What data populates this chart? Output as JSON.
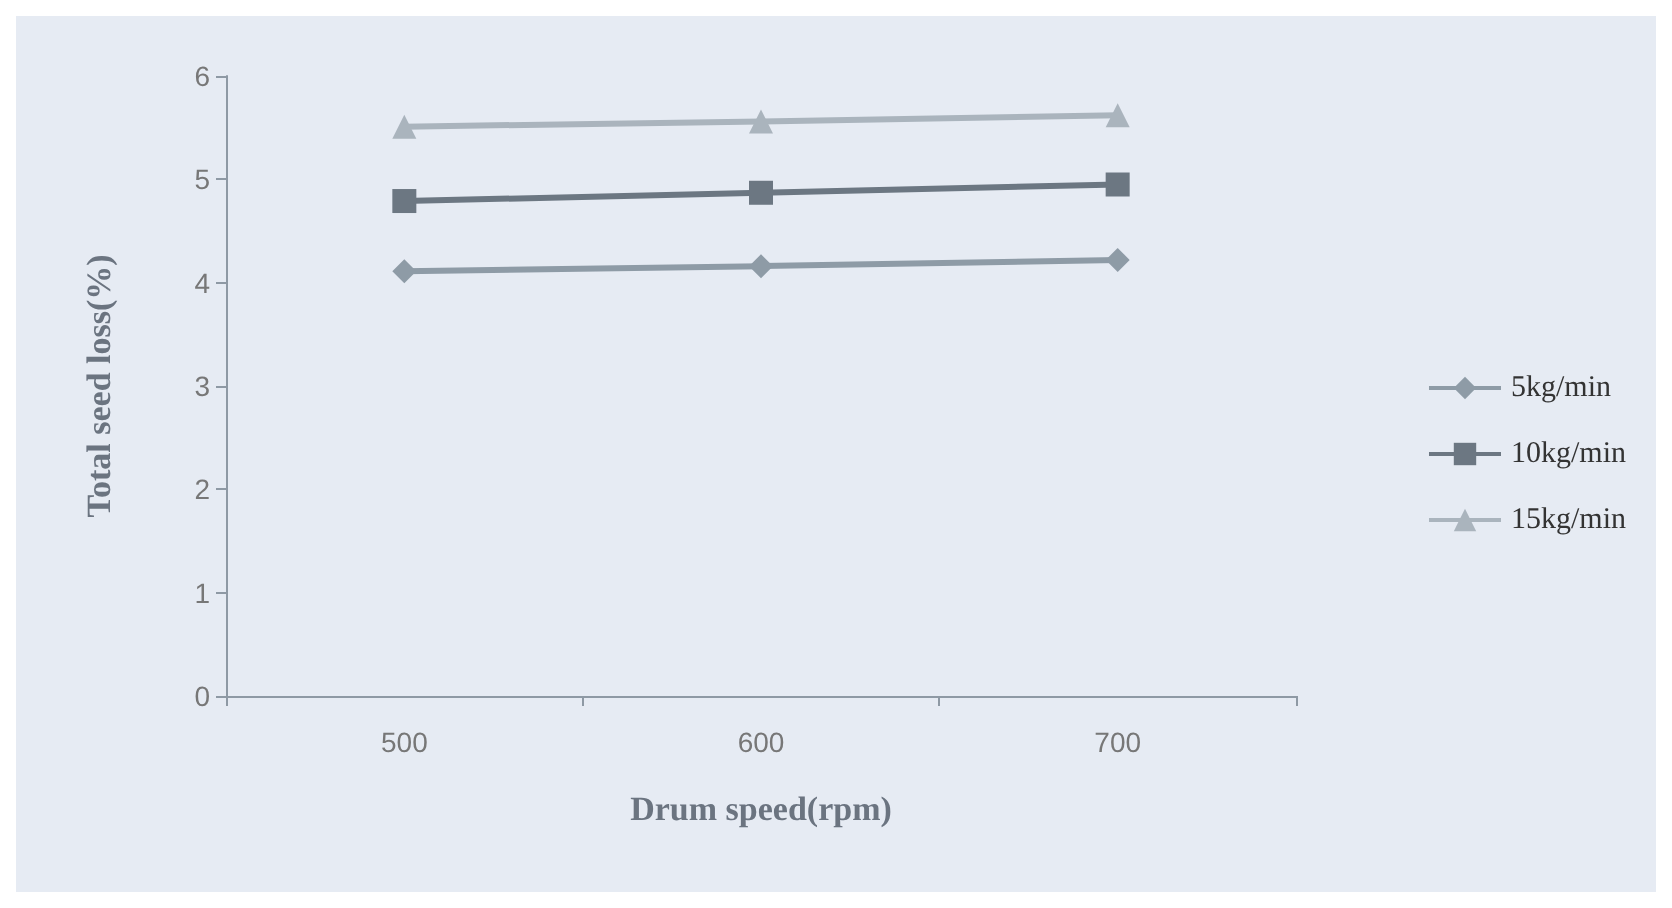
{
  "chart_data": {
    "type": "line",
    "xlabel": "Drum speed(rpm)",
    "ylabel": "Total seed loss(%)",
    "categories": [
      "500",
      "600",
      "700"
    ],
    "series": [
      {
        "name": "5kg/min",
        "color": "#8e9ba6",
        "marker": "diamond",
        "values": [
          4.11,
          4.16,
          4.22
        ]
      },
      {
        "name": "10kg/min",
        "color": "#6c7782",
        "marker": "square",
        "values": [
          4.79,
          4.87,
          4.95
        ]
      },
      {
        "name": "15kg/min",
        "color": "#aab4bd",
        "marker": "triangle",
        "values": [
          5.51,
          5.56,
          5.62
        ]
      }
    ],
    "ylim": [
      0,
      6
    ],
    "yticks": [
      0,
      1,
      2,
      3,
      4,
      5,
      6
    ],
    "grid": false,
    "legend": "right"
  }
}
